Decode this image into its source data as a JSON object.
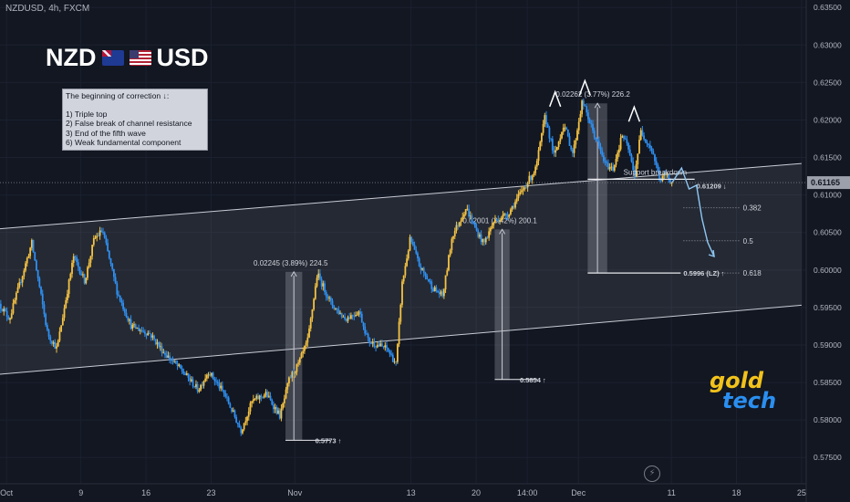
{
  "header": {
    "symbol_line": "NZDUSD, 4h, FXCM"
  },
  "title": {
    "left": "NZD",
    "right": "USD",
    "left_flag": "nz-flag-icon",
    "right_flag": "us-flag-icon"
  },
  "note": {
    "heading": "The beginning of correction ↓:",
    "items": [
      "1) Triple top",
      "2) False break of channel resistance",
      "3) End of the fifth wave",
      "6) Weak fundamental component"
    ]
  },
  "logo": {
    "word1": "gold",
    "word2": "tech"
  },
  "colors": {
    "background": "#121722",
    "up": "#f5c242",
    "down": "#2f8ff0",
    "grid": "#1c2130",
    "label_bg": "#9ca0ab"
  },
  "chart_data": {
    "type": "candlestick",
    "symbol": "NZDUSD",
    "timeframe": "4h",
    "source": "FXCM",
    "y_range": [
      0.5715,
      0.636
    ],
    "x_range_days": [
      -0.7,
      86
    ],
    "y_ticks": [
      "0.63500",
      "0.63000",
      "0.62500",
      "0.62000",
      "0.61500",
      "0.61000",
      "0.60500",
      "0.60000",
      "0.59500",
      "0.59000",
      "0.58500",
      "0.58000",
      "0.57500"
    ],
    "x_ticks": [
      {
        "day": 0,
        "label": "Oct"
      },
      {
        "day": 8,
        "label": "9"
      },
      {
        "day": 15,
        "label": "16"
      },
      {
        "day": 22,
        "label": "23"
      },
      {
        "day": 31,
        "label": "Nov"
      },
      {
        "day": 43.5,
        "label": "13"
      },
      {
        "day": 50.5,
        "label": "20"
      },
      {
        "day": 56,
        "label": "14:00"
      },
      {
        "day": 61.5,
        "label": "Dec"
      },
      {
        "day": 71.5,
        "label": "11"
      },
      {
        "day": 78.5,
        "label": "18"
      },
      {
        "day": 85.5,
        "label": "25"
      }
    ],
    "current_price": "0.61165",
    "pivots": [
      {
        "day": -0.7,
        "price": 0.5955
      },
      {
        "day": 0.4,
        "price": 0.5935
      },
      {
        "day": 2.8,
        "price": 0.6036
      },
      {
        "day": 4.5,
        "price": 0.5915
      },
      {
        "day": 5.5,
        "price": 0.5895
      },
      {
        "day": 7.3,
        "price": 0.6018
      },
      {
        "day": 8.5,
        "price": 0.5985
      },
      {
        "day": 9.5,
        "price": 0.6041
      },
      {
        "day": 10.4,
        "price": 0.6053
      },
      {
        "day": 12,
        "price": 0.597
      },
      {
        "day": 13.5,
        "price": 0.5925
      },
      {
        "day": 15.5,
        "price": 0.5915
      },
      {
        "day": 17,
        "price": 0.589
      },
      {
        "day": 19,
        "price": 0.5865
      },
      {
        "day": 20.7,
        "price": 0.584
      },
      {
        "day": 21.8,
        "price": 0.5865
      },
      {
        "day": 23.5,
        "price": 0.5835
      },
      {
        "day": 25.3,
        "price": 0.5786
      },
      {
        "day": 26.5,
        "price": 0.5825
      },
      {
        "day": 28,
        "price": 0.5835
      },
      {
        "day": 29.5,
        "price": 0.5805
      },
      {
        "day": 30.5,
        "price": 0.5855
      },
      {
        "day": 31.5,
        "price": 0.5875
      },
      {
        "day": 32.5,
        "price": 0.5907
      },
      {
        "day": 33.5,
        "price": 0.5995
      },
      {
        "day": 35,
        "price": 0.5955
      },
      {
        "day": 36.5,
        "price": 0.5935
      },
      {
        "day": 38,
        "price": 0.5945
      },
      {
        "day": 39,
        "price": 0.5905
      },
      {
        "day": 41,
        "price": 0.5895
      },
      {
        "day": 42,
        "price": 0.5874
      },
      {
        "day": 42.6,
        "price": 0.598
      },
      {
        "day": 43.5,
        "price": 0.6042
      },
      {
        "day": 44.5,
        "price": 0.6005
      },
      {
        "day": 46,
        "price": 0.5975
      },
      {
        "day": 47,
        "price": 0.5965
      },
      {
        "day": 48,
        "price": 0.6045
      },
      {
        "day": 49.5,
        "price": 0.6083
      },
      {
        "day": 50.5,
        "price": 0.6055
      },
      {
        "day": 51.4,
        "price": 0.6035
      },
      {
        "day": 52.5,
        "price": 0.6065
      },
      {
        "day": 54,
        "price": 0.6075
      },
      {
        "day": 55.5,
        "price": 0.6105
      },
      {
        "day": 57,
        "price": 0.6135
      },
      {
        "day": 58,
        "price": 0.6205
      },
      {
        "day": 59,
        "price": 0.6151
      },
      {
        "day": 60,
        "price": 0.6195
      },
      {
        "day": 61,
        "price": 0.6155
      },
      {
        "day": 62,
        "price": 0.6225
      },
      {
        "day": 63,
        "price": 0.619
      },
      {
        "day": 64.5,
        "price": 0.614
      },
      {
        "day": 65.3,
        "price": 0.6135
      },
      {
        "day": 66.3,
        "price": 0.618
      },
      {
        "day": 67,
        "price": 0.616
      },
      {
        "day": 67.6,
        "price": 0.6125
      },
      {
        "day": 68.3,
        "price": 0.6185
      },
      {
        "day": 69.5,
        "price": 0.616
      },
      {
        "day": 70.4,
        "price": 0.6118
      },
      {
        "day": 70.9,
        "price": 0.6128
      },
      {
        "day": 71.6,
        "price": 0.6117
      }
    ],
    "channel": {
      "upper": {
        "start": [
          -0.7,
          0.6055
        ],
        "end": [
          85.5,
          0.6142
        ]
      },
      "lower": {
        "start": [
          -0.7,
          0.5861
        ],
        "end": [
          85.5,
          0.5953
        ]
      }
    },
    "ranges": [
      {
        "label": "0.02245 (3.89%) 224.5",
        "day_start": 30,
        "day_end": 31.8,
        "from": 0.5773,
        "to": 0.59975
      },
      {
        "label": "0.02001 (3.42%) 200.1",
        "day_start": 52.5,
        "day_end": 54.1,
        "from": 0.5854,
        "to": 0.60541
      },
      {
        "label": "0.02262 (3.77%) 226.2",
        "day_start": 62.5,
        "day_end": 64.6,
        "from": 0.5996,
        "to": 0.62222
      }
    ],
    "support_line": {
      "label": "Support breakdown",
      "price": 0.6121,
      "day_start": 62.5,
      "day_end": 74
    },
    "fib_levels": [
      {
        "label": "0.382",
        "price": 0.6083
      },
      {
        "label": "0.5",
        "price": 0.6039
      },
      {
        "label": "0.618",
        "price": 0.5996
      }
    ],
    "price_labels": [
      {
        "label": "0.5773 ↑",
        "price": 0.5773
      },
      {
        "label": "0.5854 ↑",
        "price": 0.5854
      },
      {
        "label": "0.5996 (LZ) ↑",
        "price": 0.5996
      },
      {
        "label": "0.61209 ↓",
        "price": 0.6121
      }
    ],
    "triple_top_markers": [
      {
        "day": 59,
        "price": 0.623
      },
      {
        "day": 62.2,
        "price": 0.6245
      },
      {
        "day": 67.5,
        "price": 0.621
      }
    ],
    "projection": [
      {
        "day": 71.6,
        "price": 0.6117
      },
      {
        "day": 72.6,
        "price": 0.6136
      },
      {
        "day": 73.4,
        "price": 0.6108
      },
      {
        "day": 74.2,
        "price": 0.6113
      },
      {
        "day": 74.8,
        "price": 0.6068
      },
      {
        "day": 75.4,
        "price": 0.6037
      },
      {
        "day": 76.1,
        "price": 0.6018
      }
    ]
  }
}
